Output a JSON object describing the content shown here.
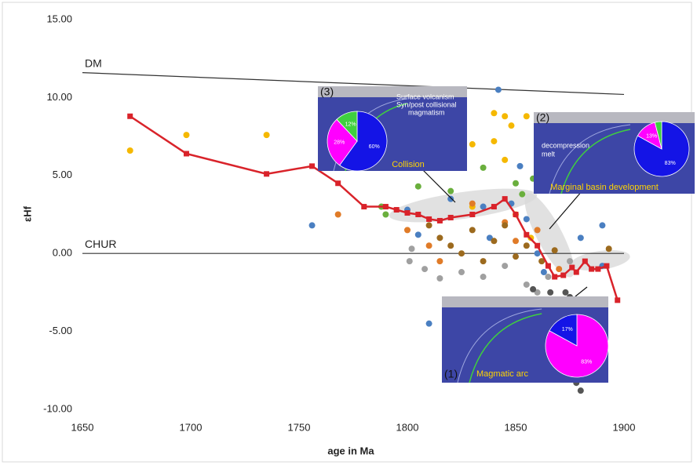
{
  "chart_data": {
    "type": "scatter",
    "x_label": "age in Ma",
    "y_label": "εHf",
    "xlim": [
      1650,
      1900
    ],
    "xticks": [
      1650,
      1700,
      1750,
      1800,
      1850,
      1900
    ],
    "ylim": [
      -10,
      15
    ],
    "yticks": [
      {
        "value": -10,
        "label": "-10.00"
      },
      {
        "value": -5,
        "label": "-5.00"
      },
      {
        "value": 0,
        "label": "0.00"
      },
      {
        "value": 5,
        "label": "5.00"
      },
      {
        "value": 10,
        "label": "10.00"
      },
      {
        "value": 15,
        "label": "15.00"
      }
    ],
    "reference_lines": [
      {
        "name": "DM",
        "color": "#333333",
        "x": [
          1650,
          1900
        ],
        "y": [
          11.6,
          10.2
        ]
      },
      {
        "name": "CHUR",
        "color": "#333333",
        "x": [
          1650,
          1900
        ],
        "y": [
          0,
          0
        ]
      }
    ],
    "series": [
      {
        "color": "#f5b800",
        "x": [
          1672,
          1698,
          1735,
          1840,
          1845,
          1848,
          1855,
          1840,
          1830,
          1845,
          1830,
          1850,
          1857
        ],
        "y": [
          6.6,
          7.6,
          7.6,
          9.0,
          8.8,
          8.2,
          8.8,
          7.2,
          7.0,
          6.0,
          3.0,
          2.5,
          1.0
        ]
      },
      {
        "color": "#e07b28",
        "x": [
          1768,
          1800,
          1810,
          1830,
          1845,
          1860,
          1815,
          1850,
          1870
        ],
        "y": [
          2.5,
          1.5,
          0.5,
          3.2,
          2.0,
          1.5,
          -0.5,
          0.8,
          -1.0
        ]
      },
      {
        "color": "#4a7fc1",
        "x": [
          1756,
          1810,
          1800,
          1805,
          1820,
          1835,
          1838,
          1848,
          1855,
          1860,
          1863,
          1880,
          1890,
          1890,
          1852,
          1842
        ],
        "y": [
          1.8,
          -4.5,
          2.8,
          1.2,
          3.5,
          3.0,
          1.0,
          3.2,
          2.2,
          0.0,
          -1.2,
          1.0,
          1.8,
          -0.8,
          5.6,
          10.5
        ]
      },
      {
        "color": "#9c6a1e",
        "x": [
          1810,
          1815,
          1820,
          1825,
          1830,
          1835,
          1840,
          1845,
          1850,
          1855,
          1862,
          1868,
          1893
        ],
        "y": [
          1.8,
          1.0,
          0.5,
          0.0,
          1.5,
          -0.5,
          0.8,
          1.8,
          -0.2,
          0.5,
          -0.5,
          0.2,
          0.3
        ]
      },
      {
        "color": "#a0a0a0",
        "x": [
          1801,
          1808,
          1815,
          1825,
          1835,
          1845,
          1855,
          1865,
          1860,
          1875,
          1802
        ],
        "y": [
          -0.5,
          -1.0,
          -1.6,
          -1.2,
          -1.5,
          -0.8,
          -2.0,
          -1.5,
          -2.5,
          -0.5,
          0.3
        ]
      },
      {
        "color": "#6aaf3d",
        "x": [
          1790,
          1805,
          1820,
          1835,
          1850,
          1853,
          1858,
          1788
        ],
        "y": [
          2.5,
          4.3,
          4.0,
          5.5,
          4.5,
          3.8,
          4.8,
          3.0
        ]
      },
      {
        "color": "#555555",
        "x": [
          1866,
          1873,
          1878,
          1880,
          1875,
          1858
        ],
        "y": [
          -2.5,
          -2.5,
          -8.3,
          -8.8,
          -2.8,
          -2.3
        ]
      }
    ],
    "trend": {
      "color": "#d9232a",
      "x": [
        1672,
        1698,
        1735,
        1756,
        1768,
        1780,
        1790,
        1795,
        1800,
        1805,
        1810,
        1815,
        1820,
        1830,
        1840,
        1845,
        1850,
        1855,
        1860,
        1865,
        1868,
        1872,
        1876,
        1878,
        1882,
        1885,
        1888,
        1892,
        1897
      ],
      "y": [
        8.8,
        6.4,
        5.1,
        5.6,
        4.5,
        3.0,
        3.0,
        2.8,
        2.6,
        2.5,
        2.2,
        2.1,
        2.3,
        2.5,
        3.0,
        3.5,
        2.5,
        1.2,
        0.5,
        -0.8,
        -1.5,
        -1.4,
        -0.9,
        -1.2,
        -0.5,
        -1.0,
        -1.0,
        -0.8,
        -3.0
      ]
    },
    "insets": [
      {
        "label": "(3)",
        "caption": "Collision",
        "notes": [
          "Surface volcanism",
          "Syn/post collisional",
          "magmatism"
        ],
        "pie": {
          "values": [
            60,
            28,
            12
          ],
          "value_labels": [
            "60%",
            "28%",
            "12%"
          ],
          "colors": [
            "#1414e6",
            "#ff00ff",
            "#3fcf3f"
          ]
        }
      },
      {
        "label": "(2)",
        "caption": "Marginal basin development",
        "notes": [
          "decompression",
          "melt"
        ],
        "pie": {
          "values": [
            83,
            13,
            4
          ],
          "value_labels": [
            "83%",
            "13%",
            null
          ],
          "colors": [
            "#1414e6",
            "#ff00ff",
            "#3fcf3f"
          ]
        }
      },
      {
        "label": "(1)",
        "caption": "Magmatic arc",
        "notes": [],
        "pie": {
          "values": [
            83,
            17
          ],
          "value_labels": [
            "83%",
            "17%"
          ],
          "colors": [
            "#ff00ff",
            "#1414e6"
          ]
        }
      }
    ]
  }
}
